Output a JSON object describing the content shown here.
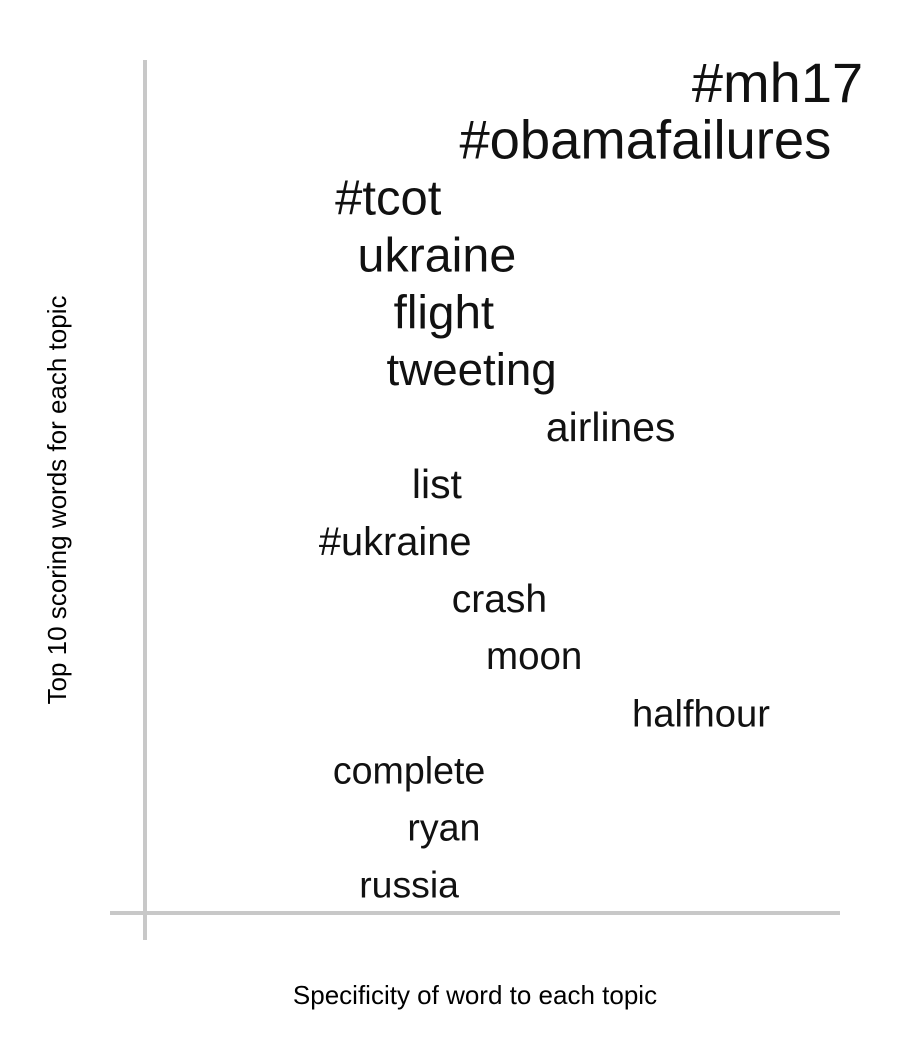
{
  "chart_data": {
    "type": "scatter",
    "xlabel": "Specificity of word to each topic",
    "ylabel": "Top 10 scoring words for each topic",
    "xlim": [
      0,
      1
    ],
    "ylim": [
      0,
      15
    ],
    "grid": false,
    "legend": "none",
    "colors": {
      "text": "#111111",
      "axis": "#c8c8c8"
    },
    "words": [
      {
        "text": "#mh17",
        "x": 0.91,
        "rank": 1,
        "weight": 1.0
      },
      {
        "text": "#obamafailures",
        "x": 0.72,
        "rank": 2,
        "weight": 0.94
      },
      {
        "text": "#tcot",
        "x": 0.35,
        "rank": 3,
        "weight": 0.74
      },
      {
        "text": "ukraine",
        "x": 0.42,
        "rank": 4,
        "weight": 0.72
      },
      {
        "text": "flight",
        "x": 0.43,
        "rank": 5,
        "weight": 0.69
      },
      {
        "text": "tweeting",
        "x": 0.47,
        "rank": 6,
        "weight": 0.62
      },
      {
        "text": "airlines",
        "x": 0.67,
        "rank": 7,
        "weight": 0.44
      },
      {
        "text": "list",
        "x": 0.42,
        "rank": 8,
        "weight": 0.44
      },
      {
        "text": "#ukraine",
        "x": 0.36,
        "rank": 9,
        "weight": 0.4
      },
      {
        "text": "crash",
        "x": 0.51,
        "rank": 10,
        "weight": 0.37
      },
      {
        "text": "moon",
        "x": 0.56,
        "rank": 11,
        "weight": 0.35
      },
      {
        "text": "halfhour",
        "x": 0.8,
        "rank": 12,
        "weight": 0.34
      },
      {
        "text": "complete",
        "x": 0.38,
        "rank": 13,
        "weight": 0.32
      },
      {
        "text": "ryan",
        "x": 0.43,
        "rank": 14,
        "weight": 0.32
      },
      {
        "text": "russia",
        "x": 0.38,
        "rank": 15,
        "weight": 0.31
      }
    ]
  }
}
